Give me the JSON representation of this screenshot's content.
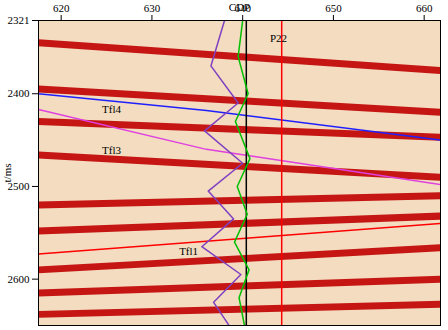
{
  "chart_data": {
    "type": "line",
    "x_label": "CDP",
    "y_label": "t/ms",
    "xlim": [
      617.5,
      661.8
    ],
    "xticks": [
      620,
      630,
      640,
      650,
      660
    ],
    "ylim": [
      2321,
      2650
    ],
    "yticks": [
      2321,
      2400,
      2500,
      2600
    ],
    "grid": false,
    "series": [
      {
        "color": "#c00000",
        "line_style": "band",
        "x": [
          617.5,
          661.8
        ],
        "values": [
          2345,
          2375
        ]
      },
      {
        "color": "#c00000",
        "line_style": "band",
        "x": [
          617.5,
          661.8
        ],
        "values": [
          2395,
          2420
        ]
      },
      {
        "color": "#c00000",
        "line_style": "band",
        "x": [
          617.5,
          661.8
        ],
        "values": [
          2430,
          2447
        ]
      },
      {
        "color": "#c00000",
        "line_style": "band",
        "x": [
          617.5,
          661.8
        ],
        "values": [
          2466,
          2490
        ]
      },
      {
        "color": "#c00000",
        "line_style": "band",
        "x": [
          617.5,
          661.8
        ],
        "values": [
          2520,
          2510
        ]
      },
      {
        "color": "#c00000",
        "line_style": "band",
        "x": [
          617.5,
          661.8
        ],
        "values": [
          2548,
          2532
        ]
      },
      {
        "color": "#c00000",
        "line_style": "band",
        "x": [
          617.5,
          661.8
        ],
        "values": [
          2590,
          2566
        ]
      },
      {
        "color": "#c00000",
        "line_style": "band",
        "x": [
          617.5,
          661.8
        ],
        "values": [
          2615,
          2600
        ]
      },
      {
        "color": "#c00000",
        "line_style": "band",
        "x": [
          617.5,
          661.8
        ],
        "values": [
          2638,
          2627
        ]
      },
      {
        "color": "#2020ff",
        "line_style": "solid",
        "x": [
          617.5,
          636,
          661.8
        ],
        "values": [
          2400,
          2418,
          2450
        ]
      },
      {
        "color": "#e040e0",
        "line_style": "solid",
        "x": [
          617.5,
          636,
          661.8
        ],
        "values": [
          2417,
          2460,
          2498
        ]
      },
      {
        "color": "#ff0000",
        "line_style": "solid",
        "x": [
          617.5,
          661.8
        ],
        "values": [
          2573,
          2540
        ]
      },
      {
        "color": "#000000",
        "line_style": "solid",
        "x": [
          640.4,
          640.4
        ],
        "values": [
          2321,
          2650
        ]
      },
      {
        "color": "#ff0000",
        "line_style": "solid",
        "x": [
          644.3,
          644.3
        ],
        "values": [
          2321,
          2650
        ]
      },
      {
        "color": "#00c000",
        "line_style": "solid",
        "x": [
          640,
          639.5,
          640.6,
          639.2,
          640.8,
          639.4,
          640.5,
          639.1,
          640.7,
          639.6,
          640.2
        ],
        "values": [
          2321,
          2360,
          2400,
          2430,
          2470,
          2500,
          2530,
          2560,
          2590,
          2620,
          2650
        ]
      },
      {
        "color": "#8040c0",
        "line_style": "solid",
        "x": [
          638,
          636.5,
          639.5,
          635.8,
          640,
          636.2,
          639,
          635.5,
          639.8,
          636.8,
          638.5
        ],
        "values": [
          2321,
          2370,
          2410,
          2440,
          2475,
          2505,
          2535,
          2565,
          2595,
          2625,
          2650
        ]
      }
    ],
    "annotations": [
      {
        "text": "P22",
        "x": 643,
        "y": 2340
      },
      {
        "text": "Tfl4",
        "x": 624.5,
        "y": 2417
      },
      {
        "text": "Tfl3",
        "x": 624.5,
        "y": 2461
      },
      {
        "text": "Tfl1",
        "x": 633,
        "y": 2570
      }
    ]
  }
}
